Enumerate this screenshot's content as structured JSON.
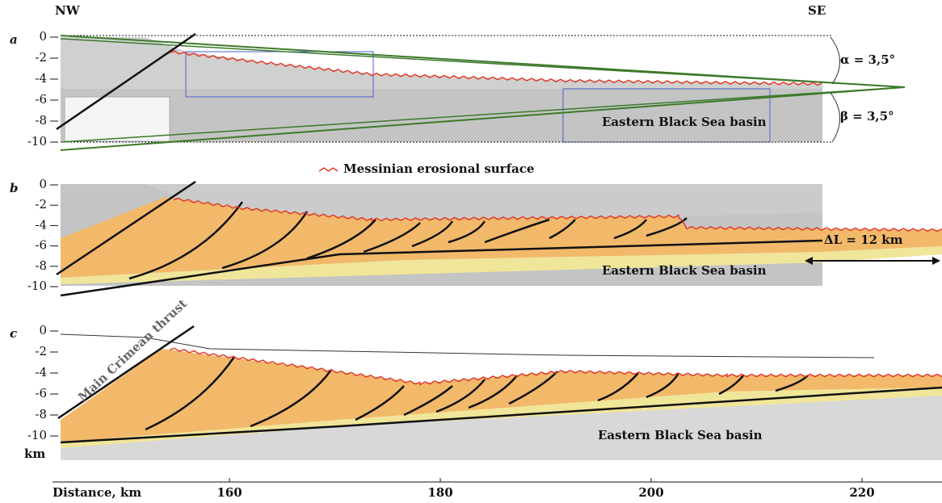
{
  "header": {
    "left": "NW",
    "right": "SE"
  },
  "panels": [
    {
      "label": "a",
      "depth_ticks": [
        "0",
        "-2",
        "-4",
        "-6",
        "-8",
        "-10"
      ],
      "basin": "Eastern Black Sea basin"
    },
    {
      "label": "b",
      "depth_ticks": [
        "0",
        "-2",
        "-4",
        "-6",
        "-8",
        "-10"
      ],
      "basin": "Eastern Black Sea basin"
    },
    {
      "label": "c",
      "depth_ticks": [
        "0",
        "-2",
        "-4",
        "-6",
        "-8",
        "-10"
      ],
      "basin": "Eastern Black Sea basin"
    }
  ],
  "annotations": {
    "alpha": "α = 3,5°",
    "beta": "β = 3,5°",
    "legend": "Messinian erosional surface",
    "shortening": "ΔL = 12 km",
    "thrust": "Main Crimean thrust"
  },
  "depth_unit": "km",
  "distance_axis": {
    "label": "Distance, km",
    "ticks": [
      "160",
      "180",
      "200",
      "220"
    ]
  }
}
